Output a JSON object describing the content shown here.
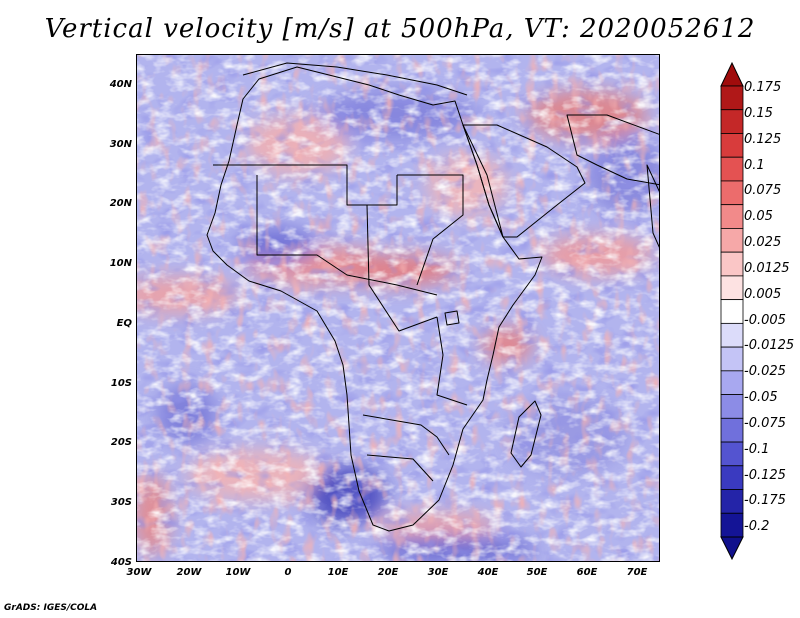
{
  "title": "Vertical velocity [m/s] at 500hPa, VT: 2020052612",
  "credit": "GrADS: IGES/COLA",
  "map": {
    "lat_range": [
      -40,
      45
    ],
    "lon_range": [
      -30,
      75
    ],
    "lat_ticks": [
      "40N",
      "30N",
      "20N",
      "10N",
      "EQ",
      "10S",
      "20S",
      "30S",
      "40S"
    ],
    "lon_ticks": [
      "30W",
      "20W",
      "10W",
      "0",
      "10E",
      "20E",
      "30E",
      "40E",
      "50E",
      "60E",
      "70E"
    ]
  },
  "colorbar": {
    "labels": [
      "0.175",
      "0.15",
      "0.125",
      "0.1",
      "0.075",
      "0.05",
      "0.025",
      "0.0125",
      "0.005",
      "-0.005",
      "-0.0125",
      "-0.025",
      "-0.05",
      "-0.075",
      "-0.1",
      "-0.125",
      "-0.175",
      "-0.2"
    ],
    "colors": [
      "#b01818",
      "#c42828",
      "#d83c3c",
      "#e45252",
      "#ec6c6c",
      "#f28a8a",
      "#f6a8a8",
      "#fac6c6",
      "#fde2e2",
      "#ffffff",
      "#dcdcfa",
      "#c4c4f6",
      "#a8a8f0",
      "#8c8ce6",
      "#7070dc",
      "#5454d0",
      "#3a3ac0",
      "#2424a8",
      "#141496"
    ],
    "max_color": "#a00c0c",
    "min_color": "#10108c"
  },
  "colors": {
    "field_base": "#b2b4ee",
    "positive": "#f09494",
    "negative": "#5a5ad2",
    "land_outline": "#000000"
  }
}
